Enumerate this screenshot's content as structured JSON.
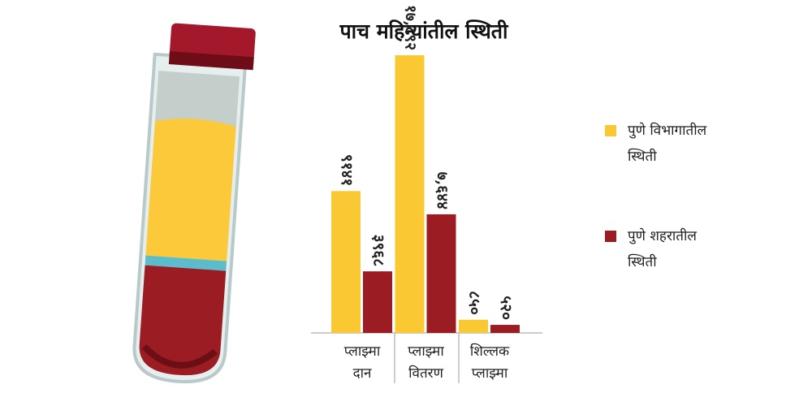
{
  "chart_data": {
    "type": "bar",
    "title": "पाच महिन्यांतील स्थिती",
    "categories": [
      "प्लाझ्मा दान",
      "प्लाझ्मा वितरण",
      "शिल्लक प्लाझ्मा"
    ],
    "series": [
      {
        "name": "पुणे विभागातील स्थिती",
        "color": "#f9c832",
        "values": [
          9141,
          17892,
          850
        ],
        "value_labels": [
          "९१४१",
          "१७,८९२",
          "८५०"
        ]
      },
      {
        "name": "पुणे शहरातील स्थिती",
        "color": "#9b1c22",
        "values": [
          3968,
          7644,
          520
        ],
        "value_labels": [
          "३९६८",
          "७,६४४",
          "५२०"
        ]
      }
    ],
    "ylim": [
      0,
      18000
    ]
  }
}
